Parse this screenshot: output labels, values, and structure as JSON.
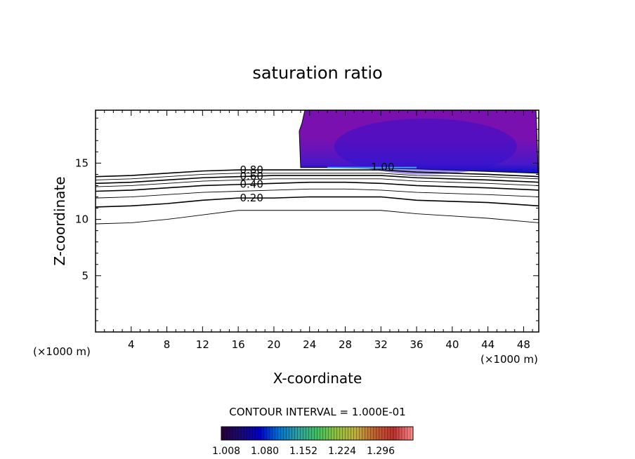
{
  "chart_data": {
    "type": "contour",
    "title": "saturation ratio",
    "xlabel": "X-coordinate",
    "ylabel": "Z-coordinate",
    "x_unit_left": "(×1000 m)",
    "x_unit_right": "(×1000 m)",
    "xlim": [
      0,
      49.7
    ],
    "ylim": [
      0,
      19.7
    ],
    "x_ticks": [
      4,
      8,
      12,
      16,
      20,
      24,
      28,
      32,
      36,
      40,
      44,
      48
    ],
    "y_ticks": [
      5,
      10,
      15
    ],
    "contour_interval_text": "CONTOUR INTERVAL = 1.000E-01",
    "colorbar": {
      "labels": [
        "1.008",
        "1.080",
        "1.152",
        "1.224",
        "1.296"
      ],
      "colors": [
        "#2a0038",
        "#1a0a70",
        "#0000c8",
        "#0070d0",
        "#30a0a0",
        "#40c060",
        "#90c040",
        "#c0b040",
        "#c06030",
        "#c03030",
        "#ff9090"
      ]
    },
    "filled_region": {
      "label": "1.00",
      "x_range": [
        23.0,
        49.7
      ],
      "z_bottom": 14.6,
      "z_top": 19.7,
      "base_color": "#7a10b0",
      "core_color": "#0a10c8"
    },
    "contour_lines": [
      {
        "level": 0.1,
        "label": "",
        "z": [
          9.6,
          9.7,
          10.0,
          10.4,
          10.8,
          10.8,
          10.8,
          10.8,
          10.8,
          10.5,
          10.1,
          9.7
        ]
      },
      {
        "level": 0.2,
        "label": "0.20",
        "z": [
          11.1,
          11.2,
          11.4,
          11.7,
          11.9,
          11.9,
          12.0,
          12.0,
          12.0,
          11.7,
          11.5,
          11.2
        ]
      },
      {
        "level": 0.3,
        "label": "",
        "z": [
          11.9,
          12.0,
          12.2,
          12.4,
          12.5,
          12.6,
          12.7,
          12.7,
          12.6,
          12.4,
          12.2,
          12.0
        ]
      },
      {
        "level": 0.4,
        "label": "0.40",
        "z": [
          12.5,
          12.6,
          12.8,
          13.0,
          13.1,
          13.2,
          13.3,
          13.3,
          13.2,
          13.0,
          12.8,
          12.6
        ]
      },
      {
        "level": 0.5,
        "label": "",
        "z": [
          12.9,
          13.0,
          13.2,
          13.4,
          13.5,
          13.6,
          13.6,
          13.6,
          13.6,
          13.4,
          13.2,
          13.0
        ]
      },
      {
        "level": 0.6,
        "label": "0.60",
        "z": [
          13.2,
          13.3,
          13.5,
          13.7,
          13.8,
          13.9,
          13.9,
          13.9,
          13.9,
          13.7,
          13.5,
          13.3
        ]
      },
      {
        "level": 0.7,
        "label": "",
        "z": [
          13.5,
          13.6,
          13.8,
          14.0,
          14.1,
          14.1,
          14.1,
          14.1,
          14.1,
          13.9,
          13.8,
          13.6
        ]
      },
      {
        "level": 0.8,
        "label": "0.80",
        "z": [
          13.8,
          13.9,
          14.1,
          14.3,
          14.4,
          14.4,
          14.4,
          14.4,
          14.4,
          14.2,
          14.0,
          13.8
        ]
      }
    ],
    "contour_x": [
      0,
      4,
      8,
      12,
      16,
      20,
      24,
      28,
      32,
      36,
      44,
      49.7
    ]
  }
}
